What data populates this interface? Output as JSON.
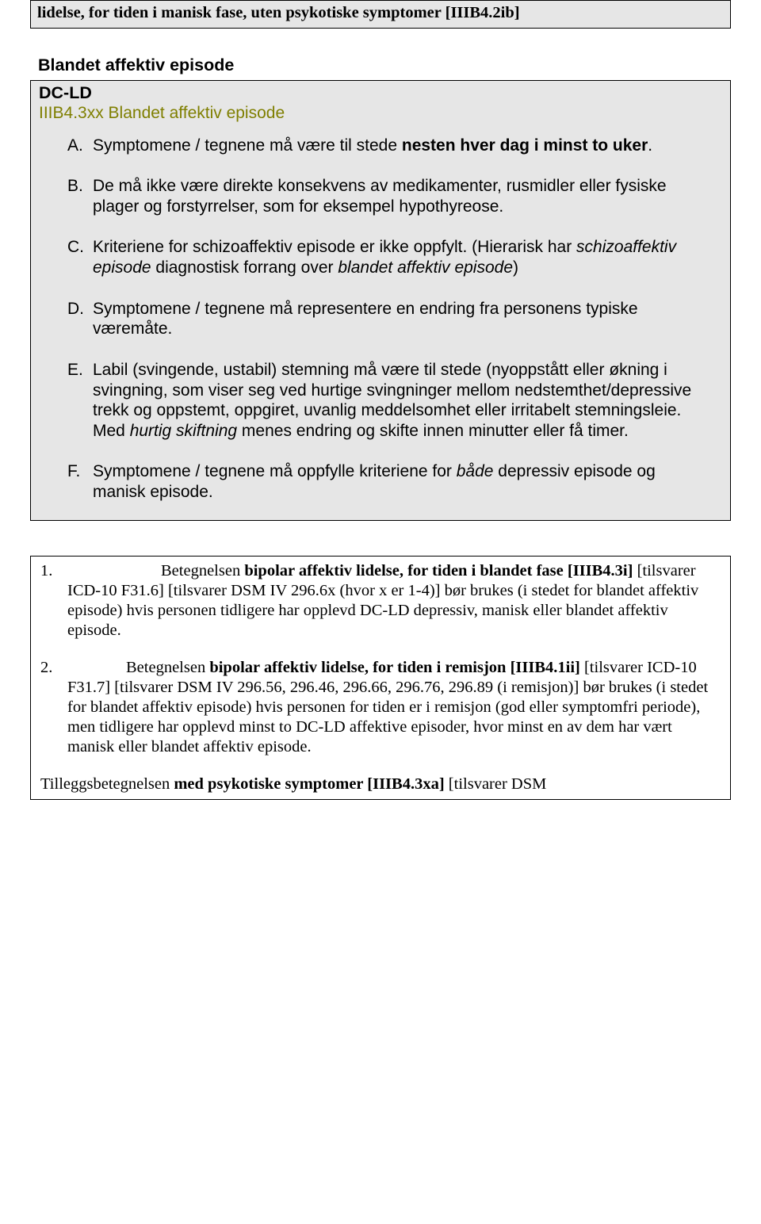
{
  "colors": {
    "box_bg": "#e6e6e6",
    "border": "#000000",
    "olive": "#7f7f00",
    "text": "#000000",
    "page_bg": "#ffffff"
  },
  "top_box": {
    "text": "lidelse, for tiden i manisk fase, uten psykotiske symptomer [IIIB4.2ib]"
  },
  "heading": "Blandet affektiv episode",
  "gray_box": {
    "dcld": "DC-LD",
    "code": "IIIB4.3xx Blandet affektiv episode",
    "items": {
      "A": {
        "letter": "A.",
        "pre": "Symptomene / tegnene må være til stede ",
        "bold": "nesten hver dag i minst to uker",
        "post": "."
      },
      "B": {
        "letter": "B.",
        "text": "De må ikke være direkte konsekvens av medikamenter, rusmidler eller fysiske plager og forstyrrelser, som for eksempel hypothyreose."
      },
      "C": {
        "letter": "C.",
        "pre": "Kriteriene for schizoaffektiv episode er ikke oppfylt. (Hierarisk har ",
        "it1": "schizoaffektiv episode",
        "mid": " diagnostisk forrang over ",
        "it2": "blandet affektiv episode",
        "post": ")"
      },
      "D": {
        "letter": "D.",
        "text": "Symptomene / tegnene må representere en endring fra personens typiske væremåte."
      },
      "E": {
        "letter": "E.",
        "pre": "Labil (svingende, ustabil) stemning må være til stede (nyoppstått eller økning i svingning, som viser seg ved hurtige svingninger mellom nedstemthet/depressive trekk og oppstemt, oppgiret, uvanlig meddelsomhet eller irritabelt stemningsleie. Med ",
        "it": "hurtig skiftning",
        "post": " menes endring og skifte innen minutter eller få timer."
      },
      "F": {
        "letter": "F.",
        "pre": "Symptomene / tegnene må oppfylle kriteriene for ",
        "it": "både",
        "post": " depressiv episode og manisk episode."
      }
    }
  },
  "bottom_box": {
    "note1": {
      "num": "1.",
      "pre": "Betegnelsen ",
      "bold": "bipolar affektiv lidelse, for tiden i blandet fase [IIIB4.3i]",
      "post": " [tilsvarer ICD-10 F31.6] [tilsvarer DSM IV 296.6x (hvor x er 1-4)] bør brukes (i stedet for blandet affektiv episode) hvis personen tidligere har opplevd DC-LD depressiv, manisk eller blandet affektiv episode."
    },
    "note2": {
      "num": "2.",
      "pre": "Betegnelsen ",
      "bold": "bipolar affektiv lidelse, for tiden i remisjon [IIIB4.1ii]",
      "post": " [tilsvarer ICD-10 F31.7] [tilsvarer DSM IV 296.56, 296.46, 296.66, 296.76, 296.89 (i remisjon)] bør brukes (i stedet for blandet affektiv episode) hvis personen for tiden er i remisjon (god eller symptomfri periode), men tidligere har opplevd minst to DC-LD affektive episoder, hvor minst en av dem har vært manisk eller blandet affektiv episode."
    },
    "tail": {
      "pre": "Tilleggsbetegnelsen ",
      "bold": "med psykotiske symptomer [IIIB4.3xa]",
      "post": " [tilsvarer DSM"
    }
  }
}
